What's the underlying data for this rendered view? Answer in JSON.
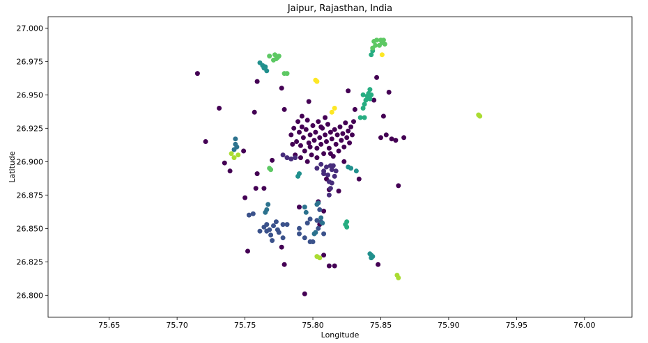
{
  "chart_data": {
    "type": "scatter",
    "title": "Jaipur, Rajasthan, India",
    "xlabel": "Longitude",
    "ylabel": "Latitude",
    "xlim": [
      75.605,
      76.035
    ],
    "ylim": [
      26.7835,
      27.0085
    ],
    "xticks": [
      75.65,
      75.7,
      75.75,
      75.8,
      75.85,
      75.9,
      75.95,
      76.0
    ],
    "xtick_labels": [
      "75.65",
      "75.70",
      "75.75",
      "75.80",
      "75.85",
      "75.90",
      "75.95",
      "76.00"
    ],
    "yticks": [
      26.8,
      26.825,
      26.85,
      26.875,
      26.9,
      26.925,
      26.95,
      26.975,
      27.0
    ],
    "ytick_labels": [
      "26.800",
      "26.825",
      "26.850",
      "26.875",
      "26.900",
      "26.925",
      "26.950",
      "26.975",
      "27.000"
    ],
    "grid": false,
    "legend": "none",
    "colormap": "viridis",
    "clusters": [
      {
        "color": "#440154",
        "points": [
          [
            75.715,
            26.966
          ],
          [
            75.731,
            26.94
          ],
          [
            75.721,
            26.915
          ],
          [
            75.735,
            26.899
          ],
          [
            75.739,
            26.893
          ],
          [
            75.749,
            26.908
          ],
          [
            75.75,
            26.873
          ],
          [
            75.752,
            26.833
          ],
          [
            75.757,
            26.937
          ],
          [
            75.759,
            26.891
          ],
          [
            75.759,
            26.96
          ],
          [
            75.758,
            26.88
          ],
          [
            75.764,
            26.88
          ],
          [
            75.77,
            26.901
          ],
          [
            75.777,
            26.955
          ],
          [
            75.777,
            26.836
          ],
          [
            75.779,
            26.939
          ],
          [
            75.779,
            26.823
          ],
          [
            75.79,
            26.866
          ],
          [
            75.794,
            26.801
          ],
          [
            75.797,
            26.945
          ],
          [
            75.804,
            26.87
          ],
          [
            75.805,
            26.853
          ],
          [
            75.808,
            26.863
          ],
          [
            75.808,
            26.83
          ],
          [
            75.81,
            26.887
          ],
          [
            75.812,
            26.879
          ],
          [
            75.812,
            26.822
          ],
          [
            75.816,
            26.822
          ],
          [
            75.819,
            26.878
          ],
          [
            75.823,
            26.9
          ],
          [
            75.826,
            26.953
          ],
          [
            75.831,
            26.939
          ],
          [
            75.834,
            26.887
          ],
          [
            75.845,
            26.946
          ],
          [
            75.847,
            26.963
          ],
          [
            75.848,
            26.823
          ],
          [
            75.85,
            26.918
          ],
          [
            75.852,
            26.934
          ],
          [
            75.854,
            26.92
          ],
          [
            75.856,
            26.952
          ],
          [
            75.858,
            26.917
          ],
          [
            75.861,
            26.916
          ],
          [
            75.863,
            26.882
          ],
          [
            75.867,
            26.918
          ],
          [
            75.784,
            26.92
          ],
          [
            75.786,
            26.925
          ],
          [
            75.788,
            26.915
          ],
          [
            75.789,
            26.93
          ],
          [
            75.79,
            26.922
          ],
          [
            75.791,
            26.912
          ],
          [
            75.792,
            26.926
          ],
          [
            75.793,
            26.918
          ],
          [
            75.794,
            26.908
          ],
          [
            75.795,
            26.924
          ],
          [
            75.796,
            26.931
          ],
          [
            75.797,
            26.914
          ],
          [
            75.798,
            26.92
          ],
          [
            75.799,
            26.905
          ],
          [
            75.8,
            26.927
          ],
          [
            75.801,
            26.916
          ],
          [
            75.802,
            26.922
          ],
          [
            75.803,
            26.91
          ],
          [
            75.804,
            26.93
          ],
          [
            75.805,
            26.918
          ],
          [
            75.806,
            26.913
          ],
          [
            75.807,
            26.925
          ],
          [
            75.808,
            26.906
          ],
          [
            75.809,
            26.92
          ],
          [
            75.81,
            26.915
          ],
          [
            75.811,
            26.928
          ],
          [
            75.812,
            26.91
          ],
          [
            75.813,
            26.922
          ],
          [
            75.814,
            26.917
          ],
          [
            75.815,
            26.904
          ],
          [
            75.816,
            26.924
          ],
          [
            75.817,
            26.913
          ],
          [
            75.818,
            26.92
          ],
          [
            75.819,
            26.908
          ],
          [
            75.82,
            26.926
          ],
          [
            75.821,
            26.916
          ],
          [
            75.822,
            26.921
          ],
          [
            75.823,
            26.911
          ],
          [
            75.824,
            26.929
          ],
          [
            75.825,
            26.918
          ],
          [
            75.826,
            26.923
          ],
          [
            75.827,
            26.914
          ],
          [
            75.828,
            26.926
          ],
          [
            75.829,
            26.92
          ],
          [
            75.83,
            26.93
          ],
          [
            75.785,
            26.913
          ],
          [
            75.787,
            26.905
          ],
          [
            75.791,
            26.903
          ],
          [
            75.796,
            26.9
          ],
          [
            75.803,
            26.903
          ],
          [
            75.806,
            26.926
          ],
          [
            75.809,
            26.933
          ],
          [
            75.792,
            26.934
          ],
          [
            75.798,
            26.911
          ],
          [
            75.813,
            26.906
          ]
        ]
      },
      {
        "color": "#472d7b",
        "points": [
          [
            75.778,
            26.905
          ],
          [
            75.781,
            26.903
          ],
          [
            75.784,
            26.902
          ],
          [
            75.787,
            26.903
          ],
          [
            75.803,
            26.895
          ],
          [
            75.806,
            26.898
          ],
          [
            75.808,
            26.893
          ],
          [
            75.81,
            26.896
          ],
          [
            75.811,
            26.89
          ],
          [
            75.812,
            26.885
          ],
          [
            75.813,
            26.88
          ],
          [
            75.814,
            26.894
          ],
          [
            75.815,
            26.897
          ],
          [
            75.816,
            26.889
          ],
          [
            75.817,
            26.893
          ],
          [
            75.813,
            26.897
          ],
          [
            75.814,
            26.884
          ],
          [
            75.812,
            26.875
          ],
          [
            75.808,
            26.891
          ]
        ]
      },
      {
        "color": "#3b528b",
        "points": [
          [
            75.753,
            26.86
          ],
          [
            75.756,
            26.861
          ],
          [
            75.761,
            26.848
          ],
          [
            75.764,
            26.851
          ],
          [
            75.766,
            26.853
          ],
          [
            75.768,
            26.849
          ],
          [
            75.769,
            26.845
          ],
          [
            75.77,
            26.841
          ],
          [
            75.771,
            26.852
          ],
          [
            75.773,
            26.855
          ],
          [
            75.774,
            26.849
          ],
          [
            75.775,
            26.847
          ],
          [
            75.778,
            26.853
          ],
          [
            75.781,
            26.853
          ],
          [
            75.778,
            26.843
          ],
          [
            75.766,
            26.848
          ],
          [
            75.79,
            26.85
          ],
          [
            75.79,
            26.846
          ],
          [
            75.794,
            26.843
          ],
          [
            75.798,
            26.84
          ],
          [
            75.8,
            26.84
          ],
          [
            75.803,
            26.856
          ],
          [
            75.804,
            26.85
          ],
          [
            75.806,
            26.855
          ],
          [
            75.805,
            26.864
          ],
          [
            75.808,
            26.846
          ],
          [
            75.796,
            26.854
          ],
          [
            75.798,
            26.857
          ]
        ]
      },
      {
        "color": "#2c728e",
        "points": [
          [
            75.743,
            26.917
          ],
          [
            75.743,
            26.913
          ],
          [
            75.744,
            26.911
          ],
          [
            75.742,
            26.909
          ],
          [
            75.766,
            26.864
          ],
          [
            75.767,
            26.868
          ],
          [
            75.765,
            26.862
          ],
          [
            75.794,
            26.866
          ],
          [
            75.795,
            26.862
          ],
          [
            75.803,
            26.868
          ],
          [
            75.804,
            26.869
          ],
          [
            75.801,
            26.846
          ],
          [
            75.802,
            26.847
          ],
          [
            75.806,
            26.858
          ],
          [
            75.807,
            26.854
          ]
        ]
      },
      {
        "color": "#21908d",
        "points": [
          [
            75.761,
            26.974
          ],
          [
            75.763,
            26.972
          ],
          [
            75.765,
            26.971
          ],
          [
            75.766,
            26.968
          ],
          [
            75.764,
            26.97
          ],
          [
            75.789,
            26.889
          ],
          [
            75.79,
            26.891
          ],
          [
            75.826,
            26.896
          ],
          [
            75.828,
            26.895
          ],
          [
            75.832,
            26.893
          ],
          [
            75.842,
            26.831
          ],
          [
            75.843,
            26.83
          ],
          [
            75.843,
            26.828
          ],
          [
            75.844,
            26.829
          ]
        ]
      },
      {
        "color": "#27ad81",
        "points": [
          [
            75.837,
            26.94
          ],
          [
            75.838,
            26.943
          ],
          [
            75.839,
            26.946
          ],
          [
            75.84,
            26.949
          ],
          [
            75.841,
            26.951
          ],
          [
            75.842,
            26.954
          ],
          [
            75.843,
            26.95
          ],
          [
            75.842,
            26.947
          ],
          [
            75.835,
            26.933
          ],
          [
            75.838,
            26.933
          ],
          [
            75.837,
            26.95
          ],
          [
            75.825,
            26.855
          ],
          [
            75.825,
            26.851
          ],
          [
            75.824,
            26.853
          ],
          [
            75.843,
            26.98
          ],
          [
            75.844,
            26.983
          ]
        ]
      },
      {
        "color": "#5dc863",
        "points": [
          [
            75.768,
            26.979
          ],
          [
            75.771,
            26.976
          ],
          [
            75.773,
            26.977
          ],
          [
            75.774,
            26.978
          ],
          [
            75.775,
            26.979
          ],
          [
            75.772,
            26.98
          ],
          [
            75.779,
            26.966
          ],
          [
            75.781,
            26.966
          ],
          [
            75.769,
            26.894
          ],
          [
            75.768,
            26.895
          ],
          [
            75.845,
            26.99
          ],
          [
            75.847,
            26.991
          ],
          [
            75.849,
            26.987
          ],
          [
            75.85,
            26.991
          ],
          [
            75.851,
            26.989
          ],
          [
            75.852,
            26.991
          ],
          [
            75.853,
            26.988
          ],
          [
            75.846,
            26.987
          ],
          [
            75.844,
            26.985
          ]
        ]
      },
      {
        "color": "#aadc32",
        "points": [
          [
            75.74,
            26.906
          ],
          [
            75.742,
            26.903
          ],
          [
            75.745,
            26.905
          ],
          [
            75.922,
            26.935
          ],
          [
            75.923,
            26.934
          ],
          [
            75.803,
            26.829
          ],
          [
            75.805,
            26.828
          ],
          [
            75.862,
            26.815
          ],
          [
            75.863,
            26.813
          ]
        ]
      },
      {
        "color": "#fde725",
        "points": [
          [
            75.802,
            26.961
          ],
          [
            75.803,
            26.96
          ],
          [
            75.814,
            26.937
          ],
          [
            75.816,
            26.94
          ],
          [
            75.851,
            26.98
          ]
        ]
      }
    ]
  }
}
